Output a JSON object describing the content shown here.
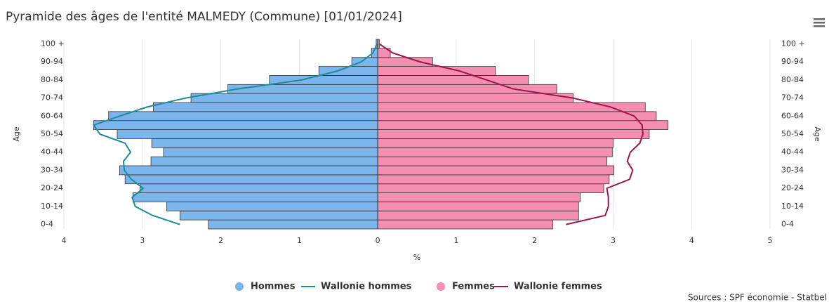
{
  "chart_data": {
    "type": "bar",
    "orientation": "horizontal",
    "title": "Pyramide des âges de l'entité MALMEDY (Commune) [01/01/2024]",
    "y_label": "Age",
    "x_label": "%",
    "source": "Sources : SPF économie - Statbel",
    "categories": [
      "0-4",
      null,
      "10-14",
      null,
      "20-24",
      null,
      "30-34",
      null,
      "40-44",
      null,
      "50-54",
      null,
      "60-64",
      null,
      "70-74",
      null,
      "80-84",
      null,
      "90-94",
      null,
      "100 +"
    ],
    "xlim": [
      -4,
      5
    ],
    "xticks": [
      {
        "value": -4,
        "label": "4"
      },
      {
        "value": -3,
        "label": "3"
      },
      {
        "value": -2,
        "label": "2"
      },
      {
        "value": -1,
        "label": "1"
      },
      0,
      1,
      2,
      3,
      4,
      5
    ],
    "grid": true,
    "series": [
      {
        "name": "Hommes",
        "type": "bar",
        "color": "#7cb5ec",
        "values": [
          -2.16,
          -2.52,
          -2.69,
          -3.12,
          -3.03,
          -3.22,
          -3.29,
          -2.89,
          -2.73,
          -2.88,
          -3.32,
          -3.62,
          -3.43,
          -2.86,
          -2.38,
          -1.91,
          -1.38,
          -0.75,
          -0.33,
          -0.08,
          -0.02
        ]
      },
      {
        "name": "Wallonie hommes",
        "type": "line",
        "color": "#1e8b9a",
        "values": [
          -2.52,
          -2.87,
          -3.09,
          -3.13,
          -2.99,
          -3.14,
          -3.23,
          -3.24,
          -3.15,
          -3.22,
          -3.54,
          -3.62,
          -3.29,
          -2.94,
          -2.45,
          -1.79,
          -0.97,
          -0.51,
          -0.21,
          -0.06,
          -0.01
        ]
      },
      {
        "name": "Femmes",
        "type": "bar",
        "color": "#f48fb1",
        "values": [
          2.23,
          2.56,
          2.56,
          2.58,
          2.88,
          2.95,
          3.01,
          2.92,
          2.99,
          3.0,
          3.46,
          3.7,
          3.55,
          3.41,
          2.49,
          2.28,
          1.92,
          1.5,
          0.7,
          0.16,
          0.02
        ]
      },
      {
        "name": "Wallonie femmes",
        "type": "line",
        "color": "#a0144b",
        "values": [
          2.4,
          2.9,
          2.94,
          2.94,
          2.92,
          3.21,
          3.25,
          3.18,
          3.22,
          3.34,
          3.38,
          3.37,
          3.27,
          2.97,
          2.49,
          1.73,
          1.39,
          1.04,
          0.54,
          0.19,
          0.02
        ]
      }
    ]
  }
}
